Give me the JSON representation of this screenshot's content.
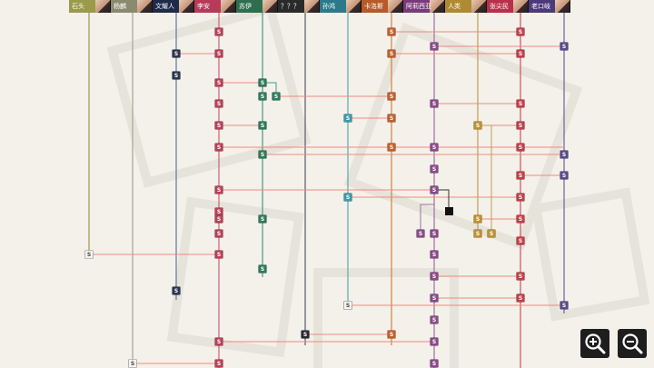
{
  "character_tabs": [
    {
      "name": "石头",
      "color": "#9a9a4a"
    },
    {
      "name": "杨麟",
      "color": "#8a8a70"
    },
    {
      "name": "文耀人",
      "color": "#1f2a4a"
    },
    {
      "name": "李安",
      "color": "#b83a5a"
    },
    {
      "name": "苏伊",
      "color": "#2e6e4e"
    },
    {
      "name": "？？？",
      "color": "#2a2a2a"
    },
    {
      "name": "孙鸿",
      "color": "#2a7a8a"
    },
    {
      "name": "卡洛斯",
      "color": "#b85a28"
    },
    {
      "name": "阿莉西亚",
      "color": "#7a3a7a"
    },
    {
      "name": "人类",
      "color": "#b08a30"
    },
    {
      "name": "张尖民",
      "color": "#b8304a"
    },
    {
      "name": "老口岐",
      "color": "#4a3a7a"
    }
  ],
  "lanes": [
    {
      "id": "shitou",
      "color": "#9a9a4a"
    },
    {
      "id": "yanglin",
      "color": "#a0a890"
    },
    {
      "id": "wenyao",
      "color": "#5a7a9a"
    },
    {
      "id": "lian",
      "color": "#d06070"
    },
    {
      "id": "suyi",
      "color": "#4a9a7a"
    },
    {
      "id": "unknown",
      "color": "#5a5a6a"
    },
    {
      "id": "sunhong",
      "color": "#5aaab0"
    },
    {
      "id": "carlos",
      "color": "#d08040"
    },
    {
      "id": "alicia",
      "color": "#a070a0"
    },
    {
      "id": "human",
      "color": "#c0a050"
    },
    {
      "id": "zhang",
      "color": "#d05060"
    },
    {
      "id": "lao",
      "color": "#7060a0"
    }
  ],
  "node_symbol": "S",
  "legend_colors": {
    "shitou": "#f4f4f0",
    "wenyao": "#2a3550",
    "lian": "#b8405a",
    "suyi": "#2e7a5a",
    "unknown": "#2a2a35",
    "sunhong": "#3a9aa8",
    "carlos": "#c06030",
    "alicia": "#8a4a8a",
    "human": "#c09030",
    "zhang": "#c0404a",
    "lao": "#5a4a8a"
  },
  "zoom": {
    "in_icon": "zoom-in",
    "out_icon": "zoom-out"
  }
}
